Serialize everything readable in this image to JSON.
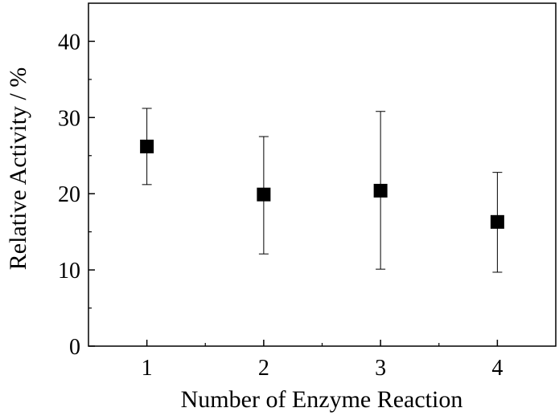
{
  "chart_data": {
    "type": "scatter",
    "title": "",
    "xlabel": "Number of Enzyme Reaction",
    "ylabel": "Relative Activity / %",
    "x": [
      1,
      2,
      3,
      4
    ],
    "series": [
      {
        "values": [
          26.2,
          19.9,
          20.4,
          16.3
        ],
        "error_low": [
          21.2,
          12.1,
          10.1,
          9.7
        ],
        "error_high": [
          31.2,
          27.5,
          30.8,
          22.8
        ],
        "marker": "square",
        "color": "#000000"
      }
    ],
    "xlim": [
      0.5,
      4.5
    ],
    "ylim": [
      0,
      45
    ],
    "x_ticks": [
      1,
      2,
      3,
      4
    ],
    "y_ticks": [
      0,
      10,
      20,
      30,
      40
    ],
    "x_tick_labels": [
      "1",
      "2",
      "3",
      "4"
    ],
    "y_tick_labels": [
      "0",
      "10",
      "20",
      "30",
      "40"
    ],
    "grid": false,
    "legend": "none"
  }
}
